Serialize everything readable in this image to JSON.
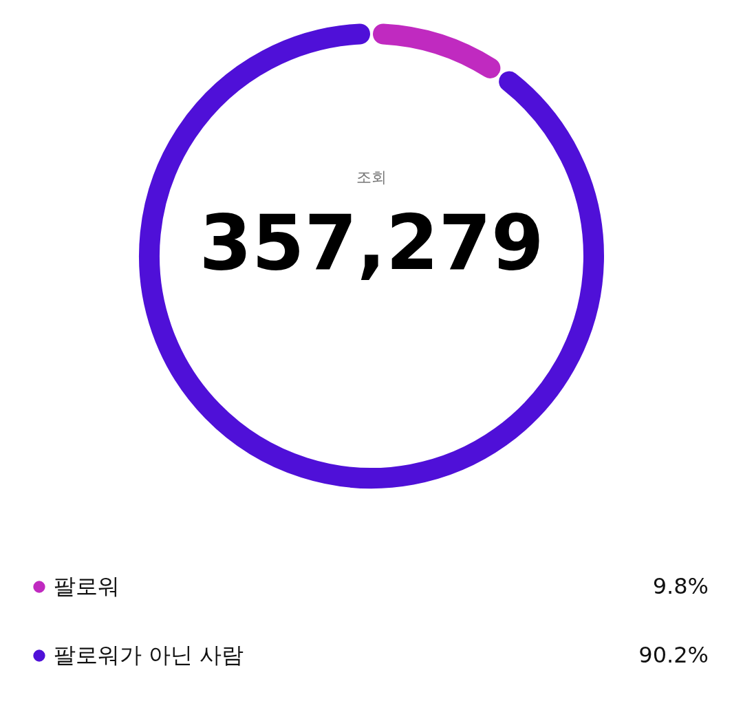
{
  "chart_data": {
    "type": "donut",
    "categories": [
      "팔로워",
      "팔로워가 아닌 사람"
    ],
    "values": [
      9.8,
      90.2
    ],
    "colors": [
      "#c02ac0",
      "#4f10d8"
    ],
    "value_labels": [
      "9.8%",
      "90.2%"
    ],
    "annotations": [
      "조회",
      "357,279"
    ],
    "legend": "bottom"
  }
}
